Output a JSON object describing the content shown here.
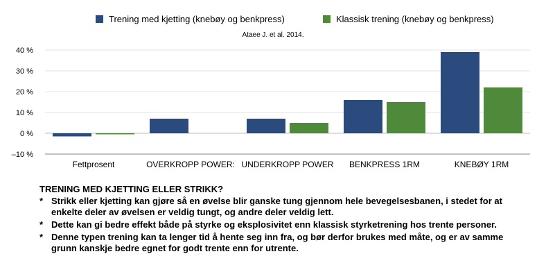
{
  "chart_data": {
    "type": "bar",
    "title": "",
    "subtitle": "Ataee J. et al. 2014.",
    "xlabel": "",
    "ylabel": "",
    "categories": [
      "Fettprosent",
      "OVERKROPP POWER:",
      "UNDERKROPP POWER",
      "BENKPRESS 1RM",
      "KNEBØY 1RM"
    ],
    "series": [
      {
        "name": "Trening med kjetting (knebøy og benkpress)",
        "color": "#2b4a7e",
        "values": [
          -1.5,
          7,
          7,
          16,
          39
        ]
      },
      {
        "name": "Klassisk trening (knebøy og benkpress)",
        "color": "#4f8a3a",
        "values": [
          -0.5,
          0,
          5,
          15,
          22
        ]
      }
    ],
    "ylim": [
      -10,
      40
    ],
    "yticks": [
      -10,
      0,
      10,
      20,
      30,
      40
    ],
    "ytick_labels": [
      "–10 %",
      "0 %",
      "10 %",
      "20 %",
      "30 %",
      "40 %"
    ],
    "grid": true,
    "legend": "top"
  },
  "notes": {
    "title": "TRENING MED KJETTING ELLER STRIKK?",
    "bullet_mark": "*",
    "items": [
      "Strikk eller kjetting kan gjøre så en øvelse blir ganske tung gjennom hele bevegelsesbanen, i stedet for at enkelte deler av øvelsen er veldig tungt, og andre deler veldig lett.",
      "Dette kan gi bedre effekt både på styrke og eksplosivitet enn klassisk styrketrening hos trente personer.",
      "Denne typen trening kan ta lenger tid å hente seg inn fra, og bør derfor brukes med måte, og er av samme grunn kanskje bedre egnet for godt trente enn for utrente."
    ]
  }
}
